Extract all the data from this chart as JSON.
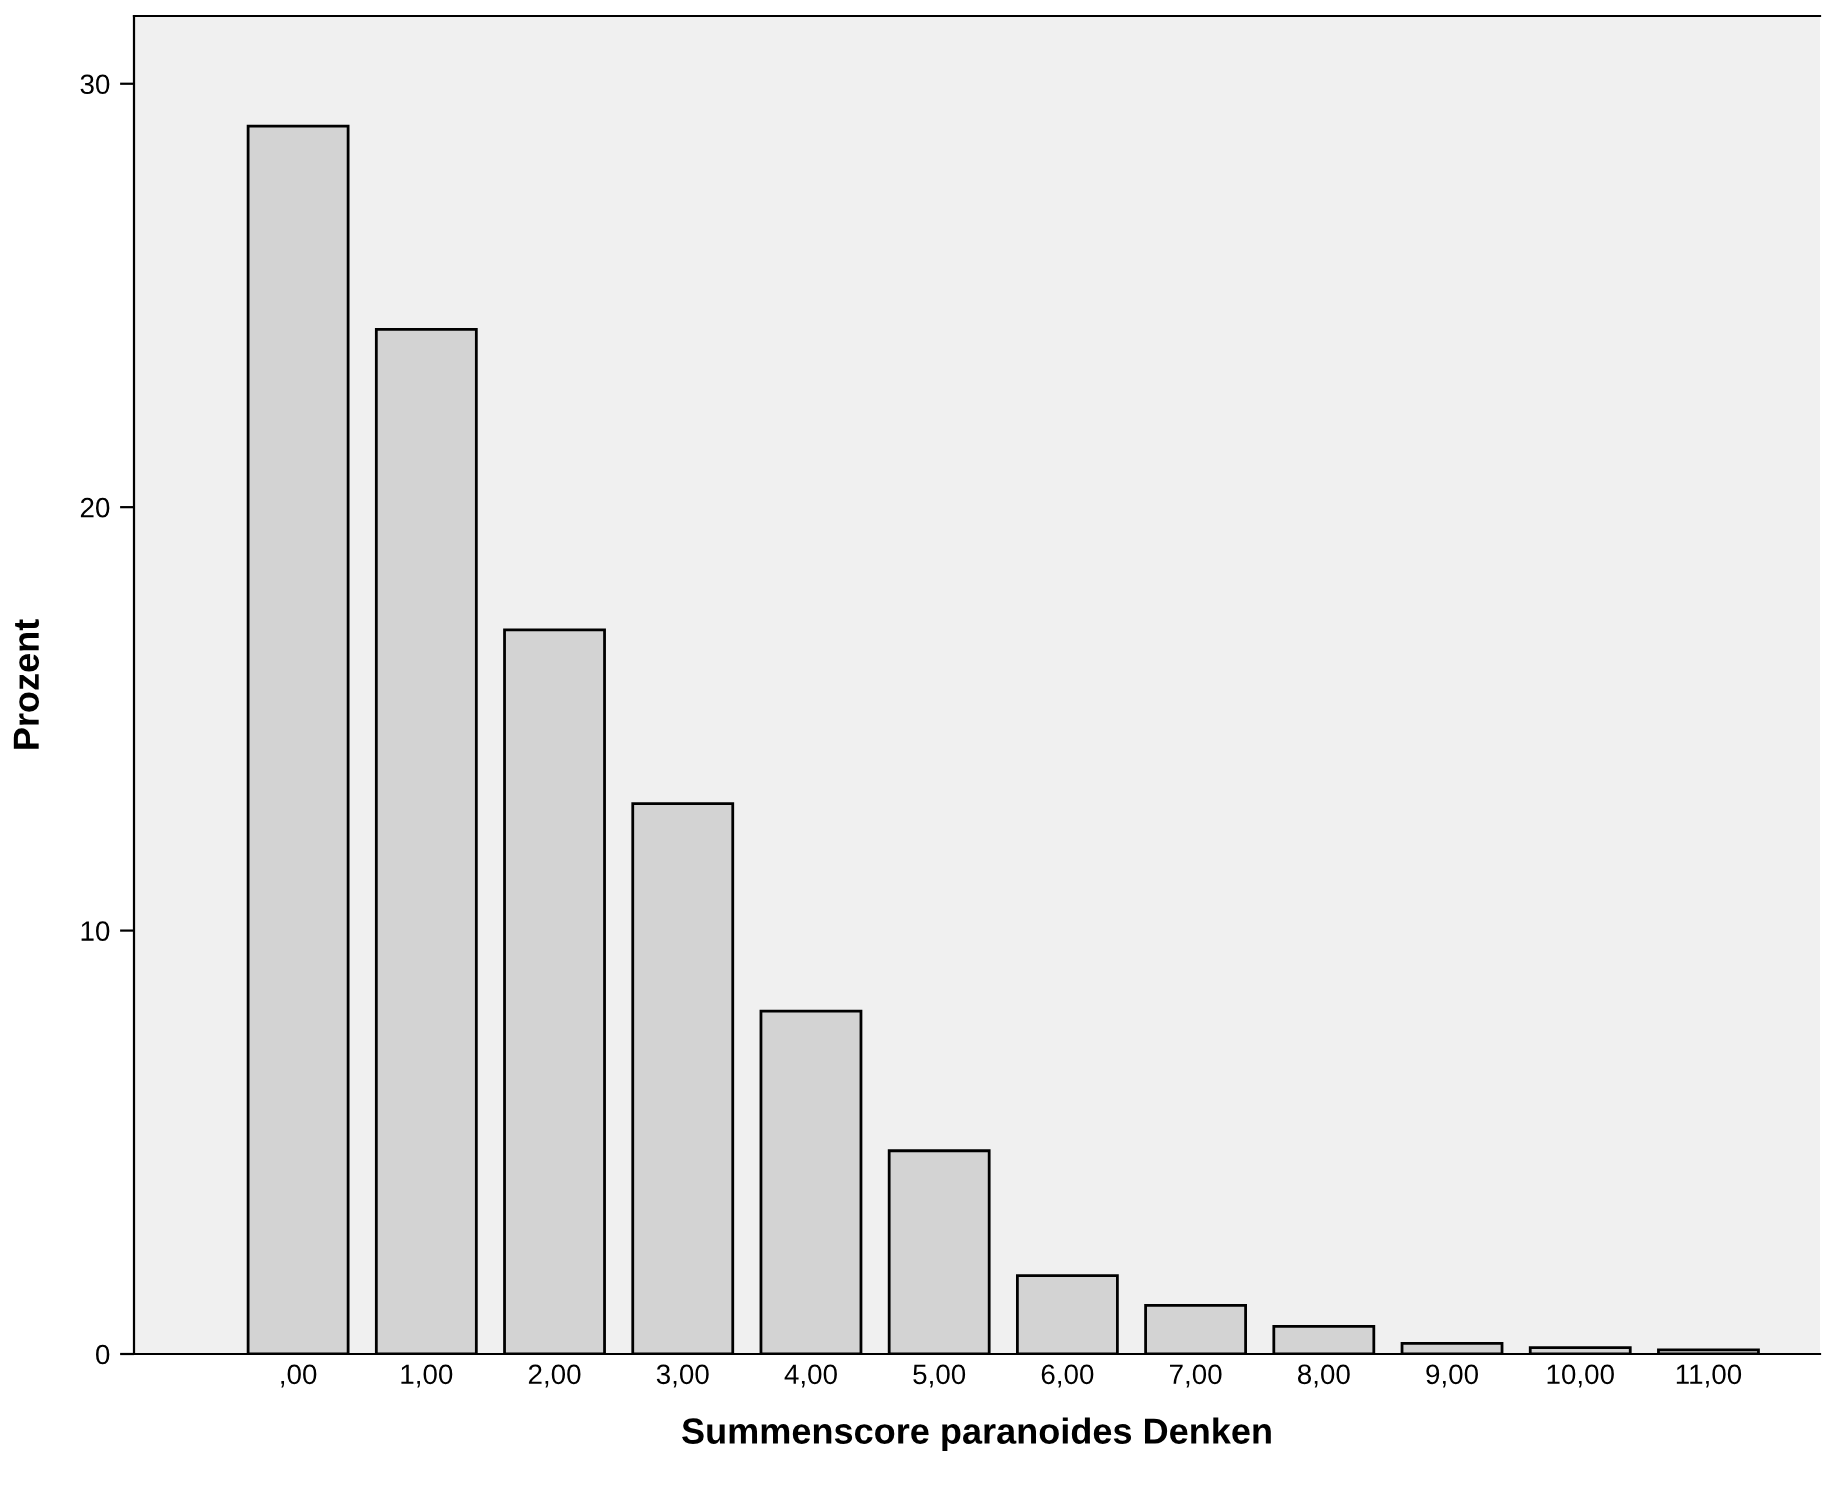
{
  "chart_data": {
    "type": "bar",
    "xlabel": "Summenscore paranoides Denken",
    "ylabel": "Prozent",
    "categories": [
      ",00",
      "1,00",
      "2,00",
      "3,00",
      "4,00",
      "5,00",
      "6,00",
      "7,00",
      "8,00",
      "9,00",
      "10,00",
      "11,00"
    ],
    "values": [
      29.0,
      24.2,
      17.1,
      13.0,
      8.1,
      4.8,
      1.85,
      1.15,
      0.65,
      0.25,
      0.15,
      0.1
    ],
    "color": "#d3d3d3",
    "ylim": [
      0,
      31.6
    ],
    "yticks": [
      0,
      10,
      20,
      30
    ],
    "grid": false
  }
}
